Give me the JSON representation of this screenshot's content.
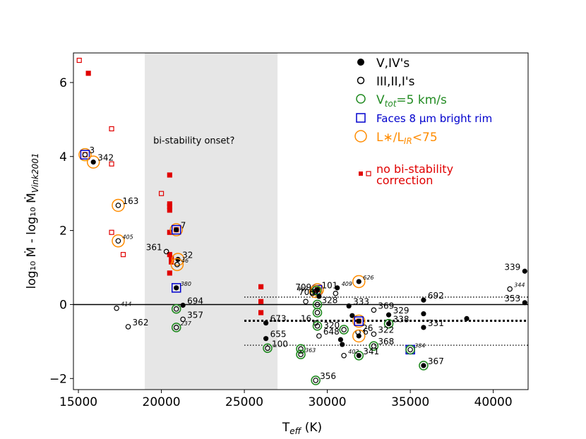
{
  "chart_data": {
    "type": "scatter",
    "xlabel_main": "T",
    "xlabel_sub": "eff",
    "xlabel_unit": " (K)",
    "ylabel": "log₁₀ Ṁ - log₁₀ Ṁ",
    "ylabel_sub": "Vink2001",
    "xlim": [
      14700,
      42100
    ],
    "ylim": [
      -2.3,
      6.8
    ],
    "xticks": [
      15000,
      20000,
      25000,
      30000,
      35000,
      40000
    ],
    "yticks": [
      -2,
      0,
      2,
      4,
      6
    ],
    "xtick_labels": [
      "15000",
      "20000",
      "25000",
      "30000",
      "35000",
      "40000"
    ],
    "ytick_labels": [
      "−2",
      "0",
      "2",
      "4",
      "6"
    ],
    "shaded_region": {
      "x0": 19000,
      "x1": 27000,
      "label": "bi-stability onset?"
    },
    "hlines": [
      {
        "y": 0,
        "style": "solid"
      },
      {
        "y": 0.2,
        "style": "dotted",
        "x0": 25000,
        "x1": 42100
      },
      {
        "y": -0.44,
        "style": "dotted-bold",
        "x0": 25000,
        "x1": 42100
      },
      {
        "y": -1.1,
        "style": "dotted",
        "x0": 25000,
        "x1": 42100
      }
    ],
    "legend": {
      "v_iv": "V,IV's",
      "iii_ii_i": "III,II,I's",
      "vtot_main": "V",
      "vtot_sub": "tot",
      "vtot_rest": "=5 km/s",
      "faces_rim": "Faces 8 μm bright rim",
      "lratio_main": "L∗/L",
      "lratio_sub": "IR",
      "lratio_rest": "<75",
      "no_bistab_line1": "no bi-stability",
      "no_bistab_line2": "correction"
    },
    "colors": {
      "black": "#000000",
      "green": "#228b22",
      "blue": "#0000cd",
      "orange": "#ff8c00",
      "red": "#e00000",
      "shade": "#e6e6e6"
    },
    "points": [
      {
        "x": 15400,
        "y": 4.05,
        "filled": false,
        "green": false,
        "blue": true,
        "orange": true,
        "label": "3",
        "small": false
      },
      {
        "x": 15900,
        "y": 3.85,
        "filled": true,
        "green": false,
        "blue": false,
        "orange": true,
        "label": "342",
        "small": false
      },
      {
        "x": 17400,
        "y": 2.68,
        "filled": false,
        "green": false,
        "blue": false,
        "orange": true,
        "label": "163",
        "small": false
      },
      {
        "x": 17400,
        "y": 1.72,
        "filled": false,
        "green": false,
        "blue": false,
        "orange": true,
        "label": "405",
        "small": true
      },
      {
        "x": 17300,
        "y": -0.1,
        "filled": false,
        "green": false,
        "blue": false,
        "orange": false,
        "label": "414",
        "small": true
      },
      {
        "x": 18000,
        "y": -0.6,
        "filled": false,
        "green": false,
        "blue": false,
        "orange": false,
        "label": "362",
        "small": false
      },
      {
        "x": 20300,
        "y": 1.43,
        "filled": false,
        "green": false,
        "blue": false,
        "orange": false,
        "label": "361",
        "small": false,
        "label_left": true
      },
      {
        "x": 20900,
        "y": 2.02,
        "filled": true,
        "green": false,
        "blue": true,
        "orange": true,
        "label": "7",
        "small": false
      },
      {
        "x": 21000,
        "y": 1.22,
        "filled": true,
        "green": false,
        "blue": false,
        "orange": true,
        "label": "32",
        "small": false
      },
      {
        "x": 20950,
        "y": 1.08,
        "filled": false,
        "green": false,
        "blue": false,
        "orange": true,
        "label": "46",
        "small": true
      },
      {
        "x": 20900,
        "y": 0.45,
        "filled": true,
        "green": false,
        "blue": true,
        "orange": false,
        "label": "380",
        "small": true
      },
      {
        "x": 21300,
        "y": -0.02,
        "filled": true,
        "green": false,
        "blue": false,
        "orange": false,
        "label": "694",
        "small": false
      },
      {
        "x": 20900,
        "y": -0.12,
        "filled": false,
        "green": true,
        "blue": false,
        "orange": false,
        "label": "",
        "small": false
      },
      {
        "x": 21300,
        "y": -0.4,
        "filled": false,
        "green": false,
        "blue": false,
        "orange": false,
        "label": "357",
        "small": false
      },
      {
        "x": 20900,
        "y": -0.62,
        "filled": false,
        "green": true,
        "blue": false,
        "orange": false,
        "label": "237",
        "small": true
      },
      {
        "x": 26300,
        "y": -0.5,
        "filled": true,
        "green": false,
        "blue": false,
        "orange": false,
        "label": "673",
        "small": false
      },
      {
        "x": 26300,
        "y": -0.92,
        "filled": true,
        "green": false,
        "blue": false,
        "orange": false,
        "label": "655",
        "small": false
      },
      {
        "x": 26400,
        "y": -1.18,
        "filled": false,
        "green": true,
        "blue": false,
        "orange": false,
        "label": "100",
        "small": false
      },
      {
        "x": 28400,
        "y": -1.2,
        "filled": false,
        "green": true,
        "blue": false,
        "orange": false,
        "label": "",
        "small": false
      },
      {
        "x": 28400,
        "y": -1.35,
        "filled": false,
        "green": true,
        "blue": false,
        "orange": false,
        "label": "363",
        "small": true
      },
      {
        "x": 29400,
        "y": 0.4,
        "filled": true,
        "green": false,
        "blue": true,
        "orange": true,
        "label": "101",
        "small": false
      },
      {
        "x": 29300,
        "y": 0.35,
        "filled": false,
        "green": false,
        "blue": false,
        "orange": true,
        "label": "709",
        "small": false,
        "label_left": true
      },
      {
        "x": 29350,
        "y": 0.38,
        "filled": false,
        "green": true,
        "blue": false,
        "orange": false,
        "label": "",
        "small": false
      },
      {
        "x": 29100,
        "y": 0.3,
        "filled": false,
        "green": false,
        "blue": false,
        "orange": false,
        "label": "407",
        "small": true,
        "label_left": true
      },
      {
        "x": 29500,
        "y": 0.22,
        "filled": true,
        "green": false,
        "blue": false,
        "orange": false,
        "label": "700",
        "small": false,
        "label_left": true
      },
      {
        "x": 28700,
        "y": 0.08,
        "filled": false,
        "green": false,
        "blue": false,
        "orange": false,
        "label": "",
        "small": false
      },
      {
        "x": 30600,
        "y": 0.45,
        "filled": true,
        "green": false,
        "blue": false,
        "orange": false,
        "label": "409",
        "small": true
      },
      {
        "x": 30500,
        "y": 0.3,
        "filled": false,
        "green": false,
        "blue": false,
        "orange": false,
        "label": "",
        "small": false
      },
      {
        "x": 29400,
        "y": 0.0,
        "filled": false,
        "green": true,
        "blue": false,
        "orange": false,
        "label": "328",
        "small": false
      },
      {
        "x": 29400,
        "y": -0.22,
        "filled": false,
        "green": true,
        "blue": false,
        "orange": false,
        "label": "",
        "small": false
      },
      {
        "x": 29300,
        "y": -0.5,
        "filled": false,
        "green": false,
        "blue": false,
        "orange": false,
        "label": "16",
        "small": false,
        "label_left": true
      },
      {
        "x": 29400,
        "y": -0.58,
        "filled": false,
        "green": true,
        "blue": false,
        "orange": false,
        "label": "",
        "small": false
      },
      {
        "x": 29500,
        "y": -0.85,
        "filled": false,
        "green": false,
        "blue": false,
        "orange": false,
        "label": "648",
        "small": false
      },
      {
        "x": 31000,
        "y": -0.68,
        "filled": false,
        "green": true,
        "blue": false,
        "orange": false,
        "label": "320",
        "small": false,
        "label_left": true
      },
      {
        "x": 31300,
        "y": -0.04,
        "filled": true,
        "green": false,
        "blue": false,
        "orange": false,
        "label": "333",
        "small": false
      },
      {
        "x": 31500,
        "y": -0.3,
        "filled": true,
        "green": false,
        "blue": false,
        "orange": false,
        "label": "",
        "small": false
      },
      {
        "x": 30800,
        "y": -0.95,
        "filled": true,
        "green": false,
        "blue": false,
        "orange": false,
        "label": "",
        "small": false
      },
      {
        "x": 30900,
        "y": -1.08,
        "filled": true,
        "green": false,
        "blue": false,
        "orange": false,
        "label": "",
        "small": false
      },
      {
        "x": 31000,
        "y": -1.38,
        "filled": false,
        "green": false,
        "blue": false,
        "orange": false,
        "label": "402",
        "small": true
      },
      {
        "x": 31900,
        "y": 0.62,
        "filled": true,
        "green": false,
        "blue": false,
        "orange": true,
        "label": "626",
        "small": true
      },
      {
        "x": 31900,
        "y": -0.45,
        "filled": true,
        "green": false,
        "blue": true,
        "orange": true,
        "label": "",
        "small": false
      },
      {
        "x": 31850,
        "y": -0.75,
        "filled": false,
        "green": false,
        "blue": false,
        "orange": false,
        "label": "26",
        "small": false
      },
      {
        "x": 31900,
        "y": -0.85,
        "filled": true,
        "green": false,
        "blue": false,
        "orange": true,
        "label": "6",
        "small": false
      },
      {
        "x": 31900,
        "y": -1.38,
        "filled": true,
        "green": true,
        "blue": false,
        "orange": false,
        "label": "341",
        "small": false
      },
      {
        "x": 32800,
        "y": -0.8,
        "filled": false,
        "green": false,
        "blue": false,
        "orange": false,
        "label": "322",
        "small": false
      },
      {
        "x": 32800,
        "y": -1.12,
        "filled": false,
        "green": true,
        "blue": false,
        "orange": false,
        "label": "368",
        "small": false
      },
      {
        "x": 32800,
        "y": -0.15,
        "filled": false,
        "green": false,
        "blue": false,
        "orange": false,
        "label": "369",
        "small": false
      },
      {
        "x": 33700,
        "y": -0.28,
        "filled": true,
        "green": false,
        "blue": false,
        "orange": false,
        "label": "329",
        "small": false
      },
      {
        "x": 33700,
        "y": -0.52,
        "filled": true,
        "green": true,
        "blue": false,
        "orange": false,
        "label": "338",
        "small": false
      },
      {
        "x": 35000,
        "y": -1.22,
        "filled": false,
        "green": true,
        "blue": true,
        "orange": false,
        "label": "384",
        "small": true
      },
      {
        "x": 35800,
        "y": 0.12,
        "filled": true,
        "green": false,
        "blue": false,
        "orange": false,
        "label": "692",
        "small": false
      },
      {
        "x": 35800,
        "y": -0.25,
        "filled": true,
        "green": false,
        "blue": false,
        "orange": false,
        "label": "",
        "small": false
      },
      {
        "x": 35800,
        "y": -0.62,
        "filled": true,
        "green": false,
        "blue": false,
        "orange": false,
        "label": "331",
        "small": false
      },
      {
        "x": 35800,
        "y": -1.65,
        "filled": true,
        "green": true,
        "blue": false,
        "orange": false,
        "label": "367",
        "small": false
      },
      {
        "x": 38400,
        "y": -0.38,
        "filled": true,
        "green": false,
        "blue": false,
        "orange": false,
        "label": "",
        "small": false
      },
      {
        "x": 41000,
        "y": 0.42,
        "filled": false,
        "green": false,
        "blue": false,
        "orange": false,
        "label": "344",
        "small": true
      },
      {
        "x": 41900,
        "y": 0.9,
        "filled": true,
        "green": false,
        "blue": false,
        "orange": false,
        "label": "339",
        "small": false,
        "label_left": true
      },
      {
        "x": 41900,
        "y": 0.05,
        "filled": true,
        "green": false,
        "blue": false,
        "orange": false,
        "label": "353",
        "small": false,
        "label_left": true
      },
      {
        "x": 29300,
        "y": -2.05,
        "filled": false,
        "green": true,
        "blue": false,
        "orange": false,
        "label": "356",
        "small": false
      }
    ],
    "red_squares": [
      {
        "x": 15050,
        "y": 6.6,
        "filled": false
      },
      {
        "x": 15600,
        "y": 6.25,
        "filled": true
      },
      {
        "x": 17000,
        "y": 4.75,
        "filled": false
      },
      {
        "x": 17000,
        "y": 3.8,
        "filled": false
      },
      {
        "x": 17000,
        "y": 1.95,
        "filled": false
      },
      {
        "x": 17700,
        "y": 1.35,
        "filled": false
      },
      {
        "x": 20000,
        "y": 3.0,
        "filled": false
      },
      {
        "x": 20500,
        "y": 3.5,
        "filled": true
      },
      {
        "x": 20500,
        "y": 2.72,
        "filled": true
      },
      {
        "x": 20500,
        "y": 2.65,
        "filled": true
      },
      {
        "x": 20500,
        "y": 2.55,
        "filled": true
      },
      {
        "x": 20500,
        "y": 1.95,
        "filled": true
      },
      {
        "x": 20500,
        "y": 1.35,
        "filled": true
      },
      {
        "x": 20600,
        "y": 1.25,
        "filled": true
      },
      {
        "x": 20600,
        "y": 1.15,
        "filled": true
      },
      {
        "x": 20500,
        "y": 0.85,
        "filled": true
      },
      {
        "x": 26000,
        "y": 0.48,
        "filled": true
      },
      {
        "x": 26000,
        "y": 0.08,
        "filled": true
      },
      {
        "x": 26000,
        "y": -0.22,
        "filled": true
      },
      {
        "x": 15400,
        "y": 4.05,
        "filled": false
      },
      {
        "x": 20900,
        "y": 2.02,
        "filled": false
      },
      {
        "x": 29400,
        "y": 0.4,
        "filled": false
      },
      {
        "x": 31900,
        "y": -0.45,
        "filled": false
      }
    ]
  }
}
